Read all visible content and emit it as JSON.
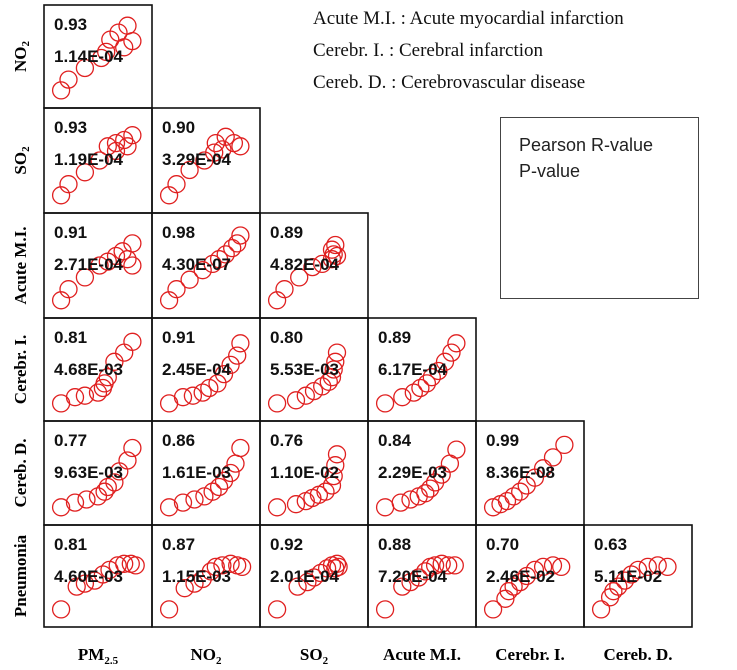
{
  "abbreviations": [
    "Acute M.I. : Acute myocardial infarction",
    "Cerebr. I. : Cerebral infarction",
    "Cereb. D. : Cerebrovascular disease"
  ],
  "legend": {
    "line1": "Pearson R-value",
    "line2": "P-value"
  },
  "chart_data": {
    "type": "scatter",
    "subtype": "lower-triangular scatterplot matrix",
    "marker": "open circle",
    "marker_color": "#e02020",
    "column_labels": [
      {
        "base": "PM",
        "sub": "2.5"
      },
      {
        "base": "NO",
        "sub": "2"
      },
      {
        "base": "SO",
        "sub": "2"
      },
      {
        "base": "Acute M.I.",
        "sub": ""
      },
      {
        "base": "Cerebr. I.",
        "sub": ""
      },
      {
        "base": "Cereb. D.",
        "sub": ""
      }
    ],
    "row_labels": [
      {
        "base": "NO",
        "sub": "2"
      },
      {
        "base": "SO",
        "sub": "2"
      },
      {
        "base": "Acute M.I.",
        "sub": ""
      },
      {
        "base": "Cerebr. I.",
        "sub": ""
      },
      {
        "base": "Cereb. D.",
        "sub": ""
      },
      {
        "base": "Pneumonia",
        "sub": ""
      }
    ],
    "cells": [
      {
        "row": 0,
        "col": 0,
        "r": "0.93",
        "p": "1.14E-04",
        "points": [
          [
            0.05,
            0.06
          ],
          [
            0.14,
            0.2
          ],
          [
            0.34,
            0.35
          ],
          [
            0.54,
            0.48
          ],
          [
            0.65,
            0.72
          ],
          [
            0.75,
            0.81
          ],
          [
            0.86,
            0.9
          ],
          [
            0.92,
            0.7
          ],
          [
            0.82,
            0.62
          ],
          [
            0.6,
            0.56
          ]
        ]
      },
      {
        "row": 1,
        "col": 0,
        "r": "0.93",
        "p": "1.19E-04",
        "points": [
          [
            0.05,
            0.06
          ],
          [
            0.14,
            0.2
          ],
          [
            0.34,
            0.35
          ],
          [
            0.52,
            0.5
          ],
          [
            0.62,
            0.68
          ],
          [
            0.72,
            0.72
          ],
          [
            0.82,
            0.76
          ],
          [
            0.92,
            0.82
          ],
          [
            0.86,
            0.68
          ],
          [
            0.72,
            0.62
          ]
        ]
      },
      {
        "row": 1,
        "col": 1,
        "r": "0.90",
        "p": "3.29E-04",
        "points": [
          [
            0.05,
            0.06
          ],
          [
            0.14,
            0.2
          ],
          [
            0.3,
            0.38
          ],
          [
            0.48,
            0.5
          ],
          [
            0.62,
            0.72
          ],
          [
            0.74,
            0.8
          ],
          [
            0.84,
            0.72
          ],
          [
            0.92,
            0.68
          ],
          [
            0.6,
            0.6
          ],
          [
            0.7,
            0.64
          ]
        ]
      },
      {
        "row": 2,
        "col": 0,
        "r": "0.91",
        "p": "2.71E-04",
        "points": [
          [
            0.05,
            0.06
          ],
          [
            0.14,
            0.2
          ],
          [
            0.34,
            0.35
          ],
          [
            0.52,
            0.5
          ],
          [
            0.62,
            0.55
          ],
          [
            0.72,
            0.62
          ],
          [
            0.8,
            0.68
          ],
          [
            0.92,
            0.78
          ],
          [
            0.86,
            0.58
          ],
          [
            0.92,
            0.5
          ]
        ]
      },
      {
        "row": 2,
        "col": 1,
        "r": "0.98",
        "p": "4.30E-07",
        "points": [
          [
            0.05,
            0.06
          ],
          [
            0.14,
            0.2
          ],
          [
            0.3,
            0.32
          ],
          [
            0.46,
            0.44
          ],
          [
            0.58,
            0.52
          ],
          [
            0.66,
            0.58
          ],
          [
            0.74,
            0.64
          ],
          [
            0.82,
            0.72
          ],
          [
            0.88,
            0.78
          ],
          [
            0.92,
            0.88
          ]
        ]
      },
      {
        "row": 2,
        "col": 2,
        "r": "0.89",
        "p": "4.82E-04",
        "points": [
          [
            0.05,
            0.06
          ],
          [
            0.14,
            0.2
          ],
          [
            0.32,
            0.35
          ],
          [
            0.48,
            0.48
          ],
          [
            0.6,
            0.52
          ],
          [
            0.72,
            0.58
          ],
          [
            0.74,
            0.64
          ],
          [
            0.72,
            0.7
          ],
          [
            0.76,
            0.76
          ],
          [
            0.78,
            0.62
          ]
        ]
      },
      {
        "row": 3,
        "col": 0,
        "r": "0.81",
        "p": "4.68E-03",
        "points": [
          [
            0.05,
            0.06
          ],
          [
            0.22,
            0.14
          ],
          [
            0.34,
            0.16
          ],
          [
            0.5,
            0.2
          ],
          [
            0.56,
            0.26
          ],
          [
            0.58,
            0.32
          ],
          [
            0.62,
            0.4
          ],
          [
            0.7,
            0.6
          ],
          [
            0.82,
            0.72
          ],
          [
            0.92,
            0.86
          ]
        ]
      },
      {
        "row": 3,
        "col": 1,
        "r": "0.91",
        "p": "2.45E-04",
        "points": [
          [
            0.05,
            0.06
          ],
          [
            0.22,
            0.14
          ],
          [
            0.34,
            0.16
          ],
          [
            0.46,
            0.2
          ],
          [
            0.54,
            0.26
          ],
          [
            0.64,
            0.32
          ],
          [
            0.72,
            0.44
          ],
          [
            0.8,
            0.56
          ],
          [
            0.88,
            0.68
          ],
          [
            0.92,
            0.84
          ]
        ]
      },
      {
        "row": 3,
        "col": 2,
        "r": "0.80",
        "p": "5.53E-03",
        "points": [
          [
            0.05,
            0.06
          ],
          [
            0.28,
            0.1
          ],
          [
            0.4,
            0.16
          ],
          [
            0.5,
            0.22
          ],
          [
            0.6,
            0.28
          ],
          [
            0.68,
            0.34
          ],
          [
            0.72,
            0.4
          ],
          [
            0.74,
            0.5
          ],
          [
            0.76,
            0.6
          ],
          [
            0.78,
            0.72
          ]
        ]
      },
      {
        "row": 3,
        "col": 3,
        "r": "0.89",
        "p": "6.17E-04",
        "points": [
          [
            0.05,
            0.06
          ],
          [
            0.26,
            0.14
          ],
          [
            0.4,
            0.2
          ],
          [
            0.48,
            0.26
          ],
          [
            0.56,
            0.32
          ],
          [
            0.62,
            0.4
          ],
          [
            0.7,
            0.48
          ],
          [
            0.78,
            0.6
          ],
          [
            0.86,
            0.72
          ],
          [
            0.92,
            0.84
          ]
        ]
      },
      {
        "row": 4,
        "col": 0,
        "r": "0.77",
        "p": "9.63E-03",
        "points": [
          [
            0.05,
            0.06
          ],
          [
            0.22,
            0.12
          ],
          [
            0.36,
            0.16
          ],
          [
            0.5,
            0.2
          ],
          [
            0.58,
            0.26
          ],
          [
            0.62,
            0.32
          ],
          [
            0.7,
            0.38
          ],
          [
            0.76,
            0.52
          ],
          [
            0.86,
            0.66
          ],
          [
            0.92,
            0.82
          ]
        ]
      },
      {
        "row": 4,
        "col": 1,
        "r": "0.86",
        "p": "1.61E-03",
        "points": [
          [
            0.05,
            0.06
          ],
          [
            0.22,
            0.12
          ],
          [
            0.36,
            0.16
          ],
          [
            0.48,
            0.2
          ],
          [
            0.58,
            0.26
          ],
          [
            0.66,
            0.32
          ],
          [
            0.72,
            0.4
          ],
          [
            0.8,
            0.5
          ],
          [
            0.86,
            0.62
          ],
          [
            0.92,
            0.82
          ]
        ]
      },
      {
        "row": 4,
        "col": 2,
        "r": "0.76",
        "p": "1.10E-02",
        "points": [
          [
            0.05,
            0.06
          ],
          [
            0.28,
            0.1
          ],
          [
            0.4,
            0.14
          ],
          [
            0.48,
            0.18
          ],
          [
            0.56,
            0.22
          ],
          [
            0.64,
            0.26
          ],
          [
            0.72,
            0.34
          ],
          [
            0.74,
            0.46
          ],
          [
            0.76,
            0.6
          ],
          [
            0.78,
            0.74
          ]
        ]
      },
      {
        "row": 4,
        "col": 3,
        "r": "0.84",
        "p": "2.29E-03",
        "points": [
          [
            0.05,
            0.06
          ],
          [
            0.24,
            0.12
          ],
          [
            0.36,
            0.16
          ],
          [
            0.46,
            0.2
          ],
          [
            0.54,
            0.24
          ],
          [
            0.6,
            0.3
          ],
          [
            0.66,
            0.38
          ],
          [
            0.74,
            0.48
          ],
          [
            0.84,
            0.62
          ],
          [
            0.92,
            0.8
          ]
        ]
      },
      {
        "row": 4,
        "col": 4,
        "r": "0.99",
        "p": "8.36E-08",
        "points": [
          [
            0.05,
            0.06
          ],
          [
            0.14,
            0.1
          ],
          [
            0.22,
            0.14
          ],
          [
            0.3,
            0.2
          ],
          [
            0.38,
            0.26
          ],
          [
            0.46,
            0.34
          ],
          [
            0.56,
            0.44
          ],
          [
            0.66,
            0.56
          ],
          [
            0.78,
            0.7
          ],
          [
            0.92,
            0.86
          ]
        ]
      },
      {
        "row": 5,
        "col": 0,
        "r": "0.81",
        "p": "4.60E-03",
        "points": [
          [
            0.05,
            0.06
          ],
          [
            0.24,
            0.36
          ],
          [
            0.34,
            0.4
          ],
          [
            0.46,
            0.44
          ],
          [
            0.56,
            0.52
          ],
          [
            0.64,
            0.58
          ],
          [
            0.74,
            0.64
          ],
          [
            0.82,
            0.66
          ],
          [
            0.9,
            0.66
          ],
          [
            0.96,
            0.64
          ]
        ]
      },
      {
        "row": 5,
        "col": 1,
        "r": "0.87",
        "p": "1.15E-03",
        "points": [
          [
            0.05,
            0.06
          ],
          [
            0.24,
            0.34
          ],
          [
            0.36,
            0.4
          ],
          [
            0.46,
            0.46
          ],
          [
            0.56,
            0.56
          ],
          [
            0.62,
            0.62
          ],
          [
            0.7,
            0.64
          ],
          [
            0.8,
            0.66
          ],
          [
            0.88,
            0.64
          ],
          [
            0.94,
            0.62
          ]
        ]
      },
      {
        "row": 5,
        "col": 2,
        "r": "0.92",
        "p": "2.01E-04",
        "points": [
          [
            0.05,
            0.06
          ],
          [
            0.3,
            0.36
          ],
          [
            0.42,
            0.42
          ],
          [
            0.5,
            0.48
          ],
          [
            0.58,
            0.54
          ],
          [
            0.66,
            0.6
          ],
          [
            0.72,
            0.64
          ],
          [
            0.78,
            0.66
          ],
          [
            0.8,
            0.62
          ],
          [
            0.76,
            0.6
          ]
        ]
      },
      {
        "row": 5,
        "col": 3,
        "r": "0.88",
        "p": "7.20E-04",
        "points": [
          [
            0.05,
            0.06
          ],
          [
            0.26,
            0.36
          ],
          [
            0.36,
            0.42
          ],
          [
            0.46,
            0.48
          ],
          [
            0.54,
            0.56
          ],
          [
            0.6,
            0.62
          ],
          [
            0.66,
            0.64
          ],
          [
            0.74,
            0.66
          ],
          [
            0.82,
            0.64
          ],
          [
            0.9,
            0.64
          ]
        ]
      },
      {
        "row": 5,
        "col": 4,
        "r": "0.70",
        "p": "2.46E-02",
        "points": [
          [
            0.05,
            0.06
          ],
          [
            0.2,
            0.2
          ],
          [
            0.24,
            0.3
          ],
          [
            0.3,
            0.36
          ],
          [
            0.38,
            0.42
          ],
          [
            0.46,
            0.5
          ],
          [
            0.56,
            0.58
          ],
          [
            0.66,
            0.62
          ],
          [
            0.78,
            0.64
          ],
          [
            0.88,
            0.62
          ]
        ]
      },
      {
        "row": 5,
        "col": 5,
        "r": "0.63",
        "p": "5.11E-02",
        "points": [
          [
            0.05,
            0.06
          ],
          [
            0.16,
            0.22
          ],
          [
            0.2,
            0.3
          ],
          [
            0.26,
            0.36
          ],
          [
            0.34,
            0.44
          ],
          [
            0.42,
            0.52
          ],
          [
            0.5,
            0.58
          ],
          [
            0.62,
            0.62
          ],
          [
            0.74,
            0.64
          ],
          [
            0.86,
            0.62
          ]
        ]
      }
    ]
  }
}
